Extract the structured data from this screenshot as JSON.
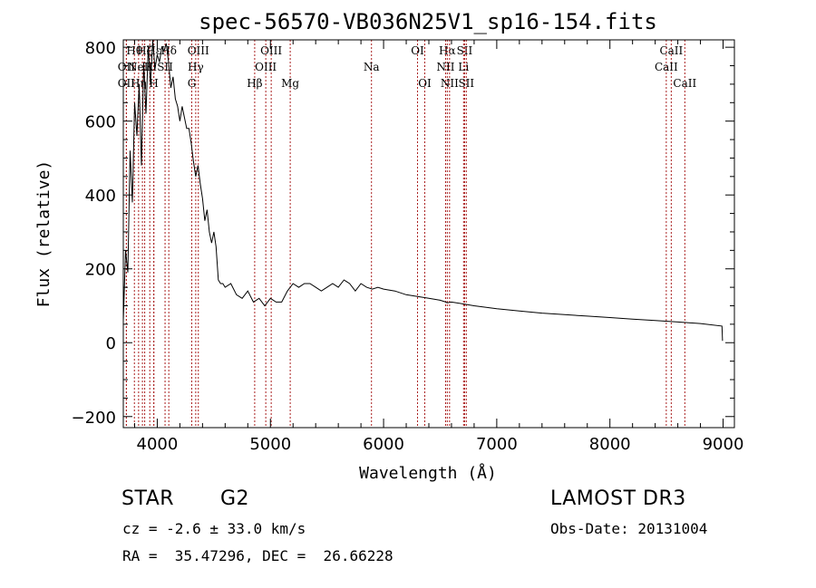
{
  "chart_data": {
    "type": "line",
    "title": "spec-56570-VB036N25V1_sp16-154.fits",
    "xlabel": "Wavelength (Å)",
    "ylabel": "Flux (relative)",
    "xlim": [
      3700,
      9100
    ],
    "ylim": [
      -230,
      820
    ],
    "x_ticks": [
      4000,
      5000,
      6000,
      7000,
      8000,
      9000
    ],
    "x_tick_labels": [
      "4000",
      "5000",
      "6000",
      "7000",
      "8000",
      "9000"
    ],
    "y_ticks": [
      -200,
      0,
      200,
      400,
      600,
      800
    ],
    "y_tick_labels": [
      "−200",
      "0",
      "200",
      "400",
      "600",
      "800"
    ],
    "grid": false,
    "line_color": "#000000",
    "marker_color": "#aa1f1f",
    "spectrum": {
      "name": "flux",
      "x": [
        3700,
        3720,
        3740,
        3760,
        3780,
        3800,
        3820,
        3840,
        3860,
        3880,
        3900,
        3920,
        3940,
        3960,
        3980,
        4000,
        4020,
        4040,
        4060,
        4080,
        4100,
        4120,
        4140,
        4160,
        4180,
        4200,
        4220,
        4240,
        4260,
        4280,
        4300,
        4320,
        4340,
        4360,
        4380,
        4400,
        4420,
        4440,
        4460,
        4480,
        4500,
        4520,
        4540,
        4560,
        4580,
        4600,
        4650,
        4700,
        4750,
        4800,
        4850,
        4900,
        4950,
        5000,
        5050,
        5100,
        5150,
        5200,
        5250,
        5300,
        5350,
        5400,
        5450,
        5500,
        5550,
        5600,
        5650,
        5700,
        5750,
        5800,
        5850,
        5900,
        5950,
        6000,
        6100,
        6200,
        6300,
        6400,
        6500,
        6550,
        6563,
        6600,
        6700,
        6800,
        7000,
        7200,
        7400,
        7600,
        7800,
        8000,
        8200,
        8400,
        8600,
        8800,
        8990,
        8995
      ],
      "y": [
        60,
        250,
        190,
        520,
        380,
        650,
        560,
        700,
        480,
        760,
        620,
        800,
        700,
        820,
        740,
        780,
        760,
        800,
        790,
        810,
        760,
        690,
        720,
        660,
        640,
        600,
        640,
        610,
        580,
        580,
        540,
        490,
        450,
        480,
        430,
        390,
        330,
        360,
        300,
        270,
        300,
        260,
        170,
        160,
        160,
        150,
        160,
        130,
        120,
        140,
        110,
        120,
        100,
        120,
        110,
        110,
        140,
        160,
        150,
        160,
        160,
        150,
        140,
        150,
        160,
        150,
        170,
        160,
        140,
        160,
        150,
        145,
        150,
        145,
        140,
        130,
        125,
        120,
        115,
        110,
        108,
        110,
        105,
        100,
        92,
        86,
        80,
        76,
        72,
        68,
        64,
        60,
        56,
        52,
        45,
        5
      ]
    },
    "spectral_lines": [
      {
        "name": "OII",
        "wavelength": 3727,
        "row": 2
      },
      {
        "name": "Hθ",
        "wavelength": 3798,
        "row": 0
      },
      {
        "name": "Hη",
        "wavelength": 3835,
        "row": 2
      },
      {
        "name": "Hζ",
        "wavelength": 3889,
        "row": 0
      },
      {
        "name": "NeIII",
        "wavelength": 3869,
        "row": 1
      },
      {
        "name": "OII",
        "wavelength": 3727,
        "row": 1
      },
      {
        "name": "K",
        "wavelength": 3934,
        "row": 1
      },
      {
        "name": "H",
        "wavelength": 3969,
        "row": 2
      },
      {
        "name": "SII",
        "wavelength": 4069,
        "row": 1
      },
      {
        "name": "Hε",
        "wavelength": 3970,
        "row": 0
      },
      {
        "name": "Hδ",
        "wavelength": 4102,
        "row": 0
      },
      {
        "name": "OIII",
        "wavelength": 4363,
        "row": 0
      },
      {
        "name": "Hγ",
        "wavelength": 4340,
        "row": 1
      },
      {
        "name": "G",
        "wavelength": 4305,
        "row": 2
      },
      {
        "name": "OIII",
        "wavelength": 5007,
        "row": 0
      },
      {
        "name": "OIII",
        "wavelength": 4959,
        "row": 1
      },
      {
        "name": "Hβ",
        "wavelength": 4861,
        "row": 2
      },
      {
        "name": "Mg",
        "wavelength": 5175,
        "row": 2
      },
      {
        "name": "Na",
        "wavelength": 5893,
        "row": 1
      },
      {
        "name": "OI",
        "wavelength": 6300,
        "row": 0
      },
      {
        "name": "OI",
        "wavelength": 6364,
        "row": 2
      },
      {
        "name": "Hα",
        "wavelength": 6563,
        "row": 0
      },
      {
        "name": "NII",
        "wavelength": 6548,
        "row": 1
      },
      {
        "name": "NII",
        "wavelength": 6583,
        "row": 2
      },
      {
        "name": "SII",
        "wavelength": 6716,
        "row": 0
      },
      {
        "name": "Li",
        "wavelength": 6707,
        "row": 1
      },
      {
        "name": "SII",
        "wavelength": 6731,
        "row": 2
      },
      {
        "name": "CaII",
        "wavelength": 8542,
        "row": 0
      },
      {
        "name": "CaII",
        "wavelength": 8498,
        "row": 1
      },
      {
        "name": "CaII",
        "wavelength": 8662,
        "row": 2
      }
    ]
  },
  "info": {
    "class_label": "STAR",
    "subclass": "G2",
    "survey": "LAMOST DR3",
    "redshift": "cz = -2.6 ± 33.0 km/s",
    "obs_date": "Obs-Date: 20131004",
    "coords": "RA =  35.47296, DEC =  26.66228"
  }
}
